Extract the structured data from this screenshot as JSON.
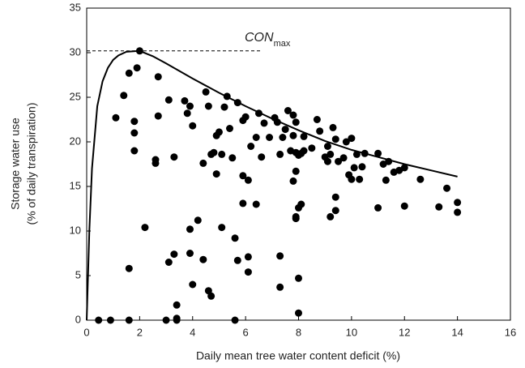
{
  "chart_data": {
    "type": "scatter",
    "x_label": "Daily mean tree water content deficit (%)",
    "y_label": [
      "Storage water use",
      "(% of daily transpiration)"
    ],
    "annotation": {
      "text": "CON",
      "subscript": "max"
    },
    "xlim": [
      0,
      16
    ],
    "xticks": [
      0,
      2,
      4,
      6,
      8,
      10,
      12,
      14,
      16
    ],
    "ylim": [
      0,
      35
    ],
    "yticks": [
      0,
      5,
      10,
      15,
      20,
      25,
      30,
      35
    ],
    "color": "#000000",
    "points": {
      "x": [
        0.45,
        0.9,
        1.6,
        3.0,
        3.4,
        5.6,
        3.4,
        3.4,
        8.0,
        2.2,
        1.6,
        3.1,
        3.3,
        3.9,
        4.0,
        4.2,
        3.9,
        4.4,
        4.6,
        4.7,
        5.1,
        5.6,
        5.7,
        6.1,
        6.1,
        7.3,
        7.3,
        8.0,
        7.9,
        7.9,
        8.0,
        8.1,
        6.4,
        5.9,
        9.2,
        9.4,
        9.4,
        11.0,
        12.0,
        13.3,
        14.0,
        14.0,
        13.6,
        12.6,
        11.8,
        12.0,
        11.6,
        11.3,
        11.2,
        11.4,
        11.0,
        1.1,
        1.4,
        1.6,
        1.9,
        2.0,
        1.8,
        1.8,
        1.8,
        2.7,
        2.7,
        3.1,
        3.3,
        3.7,
        3.8,
        3.9,
        4.0,
        4.4,
        4.5,
        4.6,
        4.8,
        4.9,
        5.0,
        4.9,
        5.1,
        5.2,
        5.3,
        5.4,
        5.5,
        5.7,
        5.9,
        6.0,
        6.2,
        6.4,
        6.5,
        6.6,
        6.7,
        6.9,
        7.1,
        7.2,
        7.3,
        7.4,
        7.5,
        7.6,
        7.7,
        7.8,
        7.8,
        7.9,
        7.9,
        8.0,
        7.9,
        7.8,
        8.1,
        8.2,
        8.2,
        8.5,
        8.7,
        8.8,
        9.0,
        9.1,
        9.1,
        9.2,
        9.3,
        9.4,
        9.5,
        9.7,
        9.8,
        9.9,
        10.0,
        10.0,
        10.1,
        10.2,
        10.3,
        10.4,
        10.5,
        4.7,
        6.1,
        2.6,
        2.6,
        5.9
      ],
      "y": [
        0,
        0,
        0,
        0,
        0,
        0,
        0.2,
        1.7,
        0.8,
        10.4,
        5.8,
        6.5,
        7.4,
        7.5,
        4.0,
        11.2,
        10.2,
        6.8,
        3.3,
        2.7,
        10.4,
        9.2,
        6.7,
        7.1,
        5.4,
        7.2,
        3.7,
        4.7,
        11.4,
        11.6,
        12.6,
        13.0,
        13.0,
        13.1,
        11.6,
        12.3,
        13.8,
        12.6,
        12.8,
        12.7,
        12.1,
        13.2,
        14.8,
        15.8,
        16.8,
        17.1,
        16.6,
        15.7,
        17.5,
        17.8,
        18.7,
        22.7,
        25.2,
        27.7,
        28.3,
        30.2,
        21.0,
        22.3,
        19.0,
        27.3,
        22.9,
        24.7,
        18.3,
        24.6,
        23.2,
        24.0,
        21.8,
        17.6,
        25.6,
        24.0,
        18.8,
        20.7,
        21.1,
        16.4,
        18.6,
        23.9,
        25.1,
        21.5,
        18.2,
        24.4,
        22.4,
        22.8,
        19.5,
        20.5,
        23.2,
        18.3,
        22.1,
        20.5,
        22.7,
        22.2,
        18.6,
        20.5,
        21.4,
        23.5,
        19.0,
        20.7,
        23.0,
        22.2,
        18.8,
        18.5,
        16.7,
        15.6,
        18.7,
        19.0,
        20.6,
        19.3,
        22.5,
        21.2,
        18.3,
        19.5,
        17.8,
        18.6,
        21.6,
        20.3,
        17.8,
        18.2,
        20.0,
        16.3,
        15.8,
        20.4,
        17.1,
        18.6,
        15.8,
        17.2,
        18.7,
        18.6,
        15.7,
        18.0,
        17.6,
        16.2
      ]
    },
    "curve": {
      "x": [
        0,
        0.1,
        0.2,
        0.4,
        0.6,
        0.8,
        1.0,
        1.2,
        1.5,
        2.0,
        2.5,
        3,
        4,
        5,
        6,
        7,
        8,
        9,
        10,
        11,
        12,
        13,
        14
      ],
      "y": [
        0,
        10,
        17,
        24,
        26.8,
        28.3,
        29.2,
        29.7,
        30.1,
        30.2,
        29.6,
        28.8,
        27.1,
        25.5,
        24,
        22.6,
        21.3,
        20.1,
        19.1,
        18.3,
        17.5,
        16.8,
        16.1
      ]
    },
    "reference_line": {
      "y": 30.2,
      "x": [
        0,
        6.6
      ]
    }
  }
}
